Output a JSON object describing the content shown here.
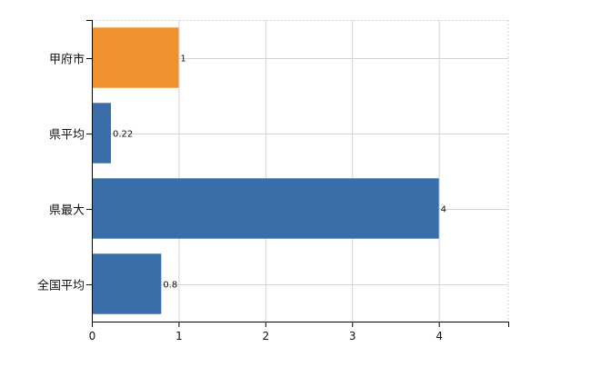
{
  "chart_data": {
    "type": "bar",
    "orientation": "horizontal",
    "categories": [
      "甲府市",
      "県平均",
      "県最大",
      "全国平均"
    ],
    "values": [
      1,
      0.22,
      4,
      0.8
    ],
    "data_labels": [
      "1",
      "0.22",
      "4",
      "0.8"
    ],
    "xlim": [
      0,
      4.8
    ],
    "x_ticks": [
      0,
      1,
      2,
      3,
      4
    ],
    "x_tick_labels": [
      "0",
      "1",
      "2",
      "3",
      "4"
    ],
    "grid": true,
    "bar_colors": [
      "#f0912f",
      "#3a6ea8",
      "#3a6ea8",
      "#3a6ea8"
    ],
    "title": "",
    "xlabel": "",
    "ylabel": ""
  }
}
